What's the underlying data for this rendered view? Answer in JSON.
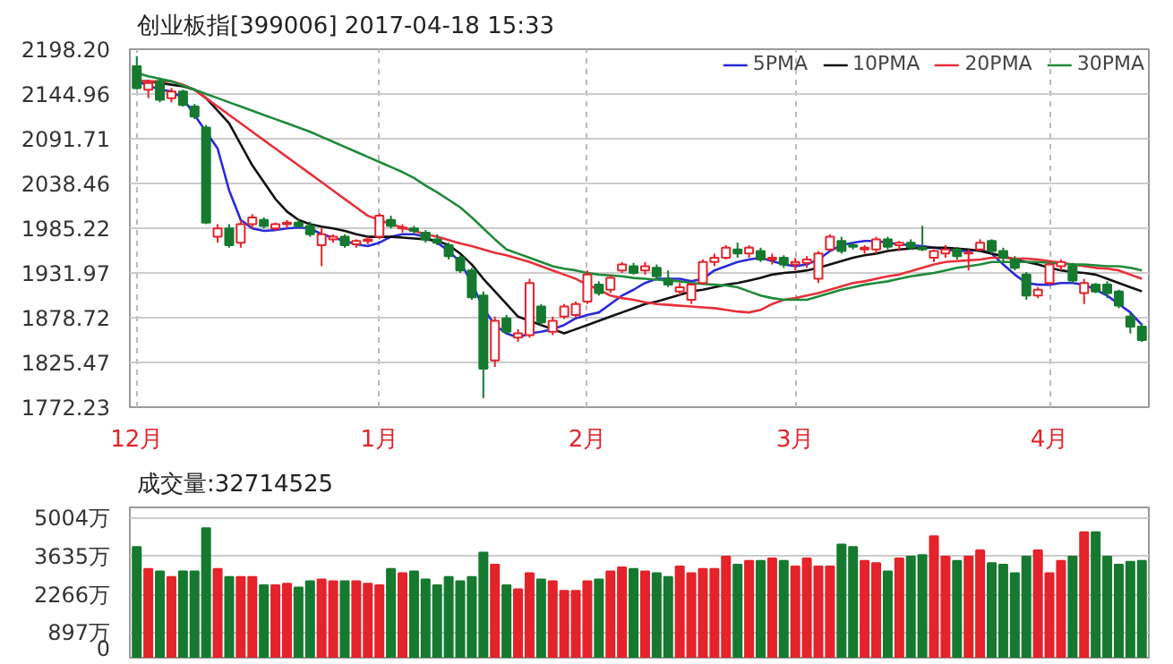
{
  "chart_data": [
    {
      "type": "candlestick",
      "title": "创业板指[399006] 2017-04-18 15:33",
      "categories": [
        "12月",
        null,
        null,
        null,
        null,
        null,
        null,
        null,
        null,
        null,
        null,
        null,
        null,
        null,
        null,
        null,
        null,
        null,
        null,
        null,
        null,
        "1月",
        null,
        null,
        null,
        null,
        null,
        null,
        null,
        null,
        null,
        null,
        null,
        null,
        null,
        null,
        null,
        null,
        null,
        "2月",
        null,
        null,
        null,
        null,
        null,
        null,
        null,
        null,
        null,
        null,
        null,
        null,
        null,
        null,
        null,
        null,
        null,
        "3月",
        null,
        null,
        null,
        null,
        null,
        null,
        null,
        null,
        null,
        null,
        null,
        null,
        null,
        null,
        null,
        null,
        null,
        null,
        null,
        null,
        null,
        "4月",
        null,
        null,
        null,
        null,
        null,
        null,
        null,
        null
      ],
      "ohlc": [
        [
          2178,
          2190,
          2150,
          2152
        ],
        [
          2150,
          2162,
          2140,
          2158
        ],
        [
          2160,
          2163,
          2135,
          2138
        ],
        [
          2140,
          2152,
          2135,
          2148
        ],
        [
          2148,
          2150,
          2130,
          2132
        ],
        [
          2130,
          2133,
          2115,
          2118
        ],
        [
          2105,
          2108,
          1990,
          1992
        ],
        [
          1975,
          1990,
          1968,
          1985
        ],
        [
          1985,
          1990,
          1962,
          1965
        ],
        [
          1968,
          1995,
          1962,
          1990
        ],
        [
          1990,
          2002,
          1985,
          1998
        ],
        [
          1995,
          1998,
          1985,
          1988
        ],
        [
          1985,
          1992,
          1982,
          1990
        ],
        [
          1990,
          1995,
          1985,
          1992
        ],
        [
          1992,
          1996,
          1985,
          1988
        ],
        [
          1988,
          1993,
          1975,
          1978
        ],
        [
          1965,
          1985,
          1940,
          1978
        ],
        [
          1972,
          1978,
          1968,
          1975
        ],
        [
          1975,
          1978,
          1962,
          1965
        ],
        [
          1966,
          1972,
          1962,
          1970
        ],
        [
          1970,
          1975,
          1966,
          1972
        ],
        [
          1975,
          2003,
          1972,
          2000
        ],
        [
          1995,
          2000,
          1985,
          1988
        ],
        [
          1985,
          1990,
          1980,
          1986
        ],
        [
          1985,
          1988,
          1978,
          1982
        ],
        [
          1980,
          1983,
          1968,
          1972
        ],
        [
          1972,
          1978,
          1965,
          1968
        ],
        [
          1965,
          1968,
          1948,
          1952
        ],
        [
          1950,
          1953,
          1932,
          1935
        ],
        [
          1935,
          1938,
          1900,
          1903
        ],
        [
          1905,
          1910,
          1783,
          1818
        ],
        [
          1828,
          1880,
          1820,
          1875
        ],
        [
          1878,
          1882,
          1860,
          1862
        ],
        [
          1855,
          1865,
          1850,
          1860
        ],
        [
          1858,
          1925,
          1855,
          1920
        ],
        [
          1892,
          1895,
          1870,
          1873
        ],
        [
          1862,
          1880,
          1858,
          1875
        ],
        [
          1880,
          1895,
          1877,
          1892
        ],
        [
          1882,
          1898,
          1878,
          1895
        ],
        [
          1898,
          1935,
          1895,
          1930
        ],
        [
          1918,
          1922,
          1905,
          1908
        ],
        [
          1912,
          1930,
          1908,
          1926
        ],
        [
          1935,
          1945,
          1932,
          1942
        ],
        [
          1940,
          1944,
          1930,
          1932
        ],
        [
          1935,
          1945,
          1930,
          1940
        ],
        [
          1938,
          1942,
          1925,
          1928
        ],
        [
          1925,
          1935,
          1915,
          1918
        ],
        [
          1910,
          1920,
          1905,
          1915
        ],
        [
          1900,
          1920,
          1895,
          1918
        ],
        [
          1920,
          1948,
          1918,
          1945
        ],
        [
          1945,
          1955,
          1940,
          1950
        ],
        [
          1950,
          1965,
          1948,
          1962
        ],
        [
          1960,
          1968,
          1950,
          1955
        ],
        [
          1955,
          1965,
          1950,
          1962
        ],
        [
          1958,
          1962,
          1945,
          1948
        ],
        [
          1948,
          1955,
          1942,
          1950
        ],
        [
          1950,
          1953,
          1938,
          1942
        ],
        [
          1942,
          1950,
          1935,
          1945
        ],
        [
          1944,
          1952,
          1938,
          1948
        ],
        [
          1925,
          1958,
          1920,
          1955
        ],
        [
          1960,
          1978,
          1958,
          1975
        ],
        [
          1970,
          1975,
          1955,
          1958
        ],
        [
          1965,
          1968,
          1960,
          1963
        ],
        [
          1960,
          1965,
          1955,
          1962
        ],
        [
          1960,
          1975,
          1955,
          1972
        ],
        [
          1972,
          1975,
          1960,
          1963
        ],
        [
          1965,
          1970,
          1958,
          1968
        ],
        [
          1968,
          1972,
          1960,
          1962
        ],
        [
          1962,
          1988,
          1958,
          1960
        ],
        [
          1950,
          1960,
          1945,
          1958
        ],
        [
          1955,
          1965,
          1950,
          1960
        ],
        [
          1960,
          1963,
          1948,
          1952
        ],
        [
          1955,
          1960,
          1935,
          1956
        ],
        [
          1960,
          1972,
          1958,
          1968
        ],
        [
          1970,
          1972,
          1955,
          1958
        ],
        [
          1958,
          1962,
          1945,
          1950
        ],
        [
          1948,
          1952,
          1935,
          1938
        ],
        [
          1930,
          1933,
          1900,
          1905
        ],
        [
          1905,
          1915,
          1902,
          1912
        ],
        [
          1920,
          1945,
          1918,
          1942
        ],
        [
          1940,
          1948,
          1935,
          1945
        ],
        [
          1940,
          1944,
          1920,
          1923
        ],
        [
          1908,
          1925,
          1895,
          1920
        ],
        [
          1918,
          1920,
          1908,
          1910
        ],
        [
          1918,
          1922,
          1902,
          1908
        ],
        [
          1910,
          1912,
          1890,
          1893
        ],
        [
          1880,
          1885,
          1860,
          1868
        ],
        [
          1868,
          1872,
          1850,
          1852
        ]
      ],
      "colors": [
        "#157a2f",
        "#e4232a",
        "#157a2f",
        "#e4232a",
        "#157a2f",
        "#157a2f",
        "#157a2f",
        "#e4232a",
        "#157a2f",
        "#e4232a",
        "#e4232a",
        "#157a2f",
        "#e4232a",
        "#e4232a",
        "#157a2f",
        "#157a2f",
        "#e4232a",
        "#e4232a",
        "#157a2f",
        "#e4232a",
        "#e4232a",
        "#e4232a",
        "#157a2f",
        "#e4232a",
        "#157a2f",
        "#157a2f",
        "#157a2f",
        "#157a2f",
        "#157a2f",
        "#157a2f",
        "#157a2f",
        "#e4232a",
        "#157a2f",
        "#e4232a",
        "#e4232a",
        "#157a2f",
        "#e4232a",
        "#e4232a",
        "#e4232a",
        "#e4232a",
        "#157a2f",
        "#e4232a",
        "#e4232a",
        "#157a2f",
        "#e4232a",
        "#157a2f",
        "#157a2f",
        "#e4232a",
        "#e4232a",
        "#e4232a",
        "#e4232a",
        "#e4232a",
        "#157a2f",
        "#e4232a",
        "#157a2f",
        "#e4232a",
        "#157a2f",
        "#e4232a",
        "#e4232a",
        "#e4232a",
        "#e4232a",
        "#157a2f",
        "#157a2f",
        "#e4232a",
        "#e4232a",
        "#157a2f",
        "#e4232a",
        "#157a2f",
        "#157a2f",
        "#e4232a",
        "#e4232a",
        "#157a2f",
        "#e4232a",
        "#e4232a",
        "#157a2f",
        "#157a2f",
        "#157a2f",
        "#157a2f",
        "#e4232a",
        "#e4232a",
        "#e4232a",
        "#157a2f",
        "#e4232a",
        "#157a2f",
        "#157a2f",
        "#157a2f",
        "#157a2f",
        "#157a2f"
      ],
      "series": [
        {
          "name": "5PMA",
          "type": "line",
          "color": "#2a2ad8",
          "values": [
            2160,
            2155,
            2150,
            2148,
            2140,
            2120,
            2100,
            2080,
            2030,
            1995,
            1985,
            1982,
            1983,
            1985,
            1986,
            1985,
            1978,
            1974,
            1970,
            1966,
            1964,
            1968,
            1975,
            1978,
            1978,
            1975,
            1968,
            1958,
            1945,
            1920,
            1890,
            1870,
            1860,
            1855,
            1860,
            1862,
            1865,
            1870,
            1878,
            1882,
            1885,
            1895,
            1905,
            1912,
            1920,
            1925,
            1925,
            1925,
            1922,
            1925,
            1935,
            1940,
            1945,
            1948,
            1950,
            1946,
            1942,
            1940,
            1942,
            1948,
            1958,
            1965,
            1968,
            1970,
            1970,
            1968,
            1966,
            1965,
            1964,
            1962,
            1960,
            1958,
            1958,
            1960,
            1955,
            1942,
            1930,
            1920,
            1918,
            1918,
            1920,
            1920,
            1918,
            1912,
            1905,
            1895,
            1885,
            1870
          ]
        },
        {
          "name": "10PMA",
          "type": "line",
          "color": "#111111",
          "values": [
            2160,
            2160,
            2158,
            2156,
            2154,
            2150,
            2140,
            2125,
            2110,
            2085,
            2060,
            2040,
            2020,
            2005,
            1995,
            1990,
            1987,
            1985,
            1982,
            1978,
            1975,
            1975,
            1975,
            1974,
            1973,
            1972,
            1970,
            1965,
            1955,
            1942,
            1925,
            1910,
            1895,
            1880,
            1875,
            1870,
            1865,
            1860,
            1865,
            1870,
            1875,
            1880,
            1885,
            1890,
            1895,
            1898,
            1902,
            1906,
            1910,
            1912,
            1915,
            1918,
            1920,
            1923,
            1926,
            1930,
            1932,
            1933,
            1935,
            1938,
            1942,
            1946,
            1950,
            1953,
            1955,
            1958,
            1960,
            1961,
            1962,
            1962,
            1962,
            1961,
            1960,
            1958,
            1955,
            1952,
            1948,
            1945,
            1942,
            1938,
            1935,
            1933,
            1932,
            1930,
            1925,
            1920,
            1915,
            1910
          ]
        },
        {
          "name": "20PMA",
          "type": "line",
          "color": "#e8303a",
          "values": [
            2160,
            2160,
            2160,
            2160,
            2156,
            2150,
            2140,
            2130,
            2120,
            2110,
            2100,
            2090,
            2080,
            2070,
            2060,
            2050,
            2040,
            2030,
            2020,
            2010,
            2000,
            1995,
            1990,
            1986,
            1982,
            1978,
            1975,
            1971,
            1967,
            1964,
            1960,
            1956,
            1953,
            1949,
            1945,
            1940,
            1935,
            1930,
            1925,
            1918,
            1912,
            1905,
            1902,
            1900,
            1897,
            1895,
            1894,
            1893,
            1892,
            1891,
            1890,
            1888,
            1886,
            1885,
            1888,
            1895,
            1900,
            1902,
            1905,
            1908,
            1912,
            1916,
            1920,
            1922,
            1925,
            1928,
            1930,
            1934,
            1938,
            1942,
            1945,
            1946,
            1947,
            1948,
            1950,
            1950,
            1949,
            1949,
            1948,
            1946,
            1944,
            1942,
            1940,
            1938,
            1937,
            1935,
            1930,
            1925
          ]
        },
        {
          "name": "30PMA",
          "type": "line",
          "color": "#1f8a3a",
          "values": [
            2170,
            2166,
            2163,
            2160,
            2155,
            2150,
            2145,
            2140,
            2135,
            2130,
            2125,
            2120,
            2115,
            2110,
            2105,
            2100,
            2094,
            2088,
            2082,
            2076,
            2070,
            2064,
            2058,
            2052,
            2045,
            2036,
            2028,
            2019,
            2010,
            1998,
            1985,
            1972,
            1960,
            1955,
            1950,
            1945,
            1940,
            1937,
            1935,
            1932,
            1930,
            1929,
            1928,
            1926,
            1925,
            1924,
            1923,
            1922,
            1920,
            1919,
            1918,
            1917,
            1915,
            1910,
            1905,
            1902,
            1900,
            1900,
            1900,
            1904,
            1908,
            1912,
            1915,
            1918,
            1920,
            1922,
            1925,
            1928,
            1930,
            1932,
            1935,
            1938,
            1940,
            1942,
            1945,
            1945,
            1945,
            1945,
            1945,
            1944,
            1943,
            1942,
            1942,
            1941,
            1940,
            1940,
            1938,
            1935
          ]
        }
      ],
      "ylim": [
        1772.23,
        2198.2
      ],
      "yticks": [
        1772.23,
        1825.47,
        1878.72,
        1931.97,
        1985.22,
        2038.46,
        2091.71,
        2144.96,
        {
          "value": 2198.2,
          "label": "2198.20"
        }
      ],
      "grid": true,
      "legend": "top right"
    },
    {
      "type": "bar",
      "title": "成交量:32714525",
      "categories": [
        null,
        null,
        null,
        null,
        null,
        null,
        null,
        null,
        null,
        null,
        null,
        null,
        null,
        null,
        null,
        null,
        null,
        null,
        null,
        null,
        null,
        null,
        null,
        null,
        null,
        null,
        null,
        null,
        null,
        null,
        null,
        null,
        null,
        null,
        null,
        null,
        null,
        null,
        null,
        null,
        null,
        null,
        null,
        null,
        null,
        null,
        null,
        null,
        null,
        null,
        null,
        null,
        null,
        null,
        null,
        null,
        null,
        null,
        null,
        null,
        null,
        null,
        null,
        null,
        null,
        null,
        null,
        null,
        null,
        null,
        null,
        null,
        null,
        null,
        null,
        null,
        null,
        null,
        null,
        null,
        null,
        null,
        null,
        null,
        null,
        null,
        null,
        null
      ],
      "values": [
        3980,
        3190,
        3100,
        2900,
        3100,
        3100,
        4650,
        3190,
        2900,
        2900,
        2900,
        2600,
        2600,
        2660,
        2520,
        2750,
        2810,
        2750,
        2750,
        2750,
        2660,
        2600,
        3190,
        3040,
        3100,
        2810,
        2600,
        2900,
        2750,
        2900,
        3780,
        3340,
        2600,
        2460,
        3040,
        2810,
        2750,
        2400,
        2400,
        2750,
        2810,
        3100,
        3250,
        3190,
        3100,
        3040,
        2900,
        3280,
        3040,
        3190,
        3190,
        3630,
        3340,
        3480,
        3480,
        3570,
        3480,
        3280,
        3570,
        3280,
        3280,
        4070,
        3980,
        3480,
        3400,
        3100,
        3570,
        3630,
        3690,
        4360,
        3630,
        3480,
        3630,
        3860,
        3400,
        3340,
        3040,
        3630,
        3860,
        3040,
        3480,
        3630,
        4510,
        4510,
        3630,
        3340,
        3450,
        3480
      ],
      "colors": [
        "#157a2f",
        "#e4232a",
        "#157a2f",
        "#e4232a",
        "#157a2f",
        "#157a2f",
        "#157a2f",
        "#e4232a",
        "#157a2f",
        "#e4232a",
        "#e4232a",
        "#157a2f",
        "#e4232a",
        "#e4232a",
        "#157a2f",
        "#157a2f",
        "#e4232a",
        "#e4232a",
        "#157a2f",
        "#e4232a",
        "#e4232a",
        "#e4232a",
        "#157a2f",
        "#e4232a",
        "#157a2f",
        "#157a2f",
        "#157a2f",
        "#157a2f",
        "#157a2f",
        "#157a2f",
        "#157a2f",
        "#e4232a",
        "#157a2f",
        "#e4232a",
        "#e4232a",
        "#157a2f",
        "#e4232a",
        "#e4232a",
        "#e4232a",
        "#e4232a",
        "#157a2f",
        "#e4232a",
        "#e4232a",
        "#157a2f",
        "#e4232a",
        "#157a2f",
        "#157a2f",
        "#e4232a",
        "#e4232a",
        "#e4232a",
        "#e4232a",
        "#e4232a",
        "#157a2f",
        "#e4232a",
        "#157a2f",
        "#e4232a",
        "#157a2f",
        "#e4232a",
        "#e4232a",
        "#e4232a",
        "#e4232a",
        "#157a2f",
        "#157a2f",
        "#e4232a",
        "#e4232a",
        "#157a2f",
        "#e4232a",
        "#157a2f",
        "#157a2f",
        "#e4232a",
        "#e4232a",
        "#157a2f",
        "#e4232a",
        "#e4232a",
        "#157a2f",
        "#157a2f",
        "#157a2f",
        "#157a2f",
        "#e4232a",
        "#e4232a",
        "#e4232a",
        "#157a2f",
        "#e4232a",
        "#157a2f",
        "#157a2f",
        "#157a2f",
        "#157a2f",
        "#157a2f"
      ],
      "ylim": [
        0,
        5400
      ],
      "yticks": [
        0,
        {
          "value": 897,
          "label": "897万"
        },
        {
          "value": 2266,
          "label": "2266万"
        },
        {
          "value": 3635,
          "label": "3635万"
        },
        {
          "value": 5004,
          "label": "5004万"
        }
      ],
      "grid": true,
      "tick_labels": "y"
    }
  ]
}
